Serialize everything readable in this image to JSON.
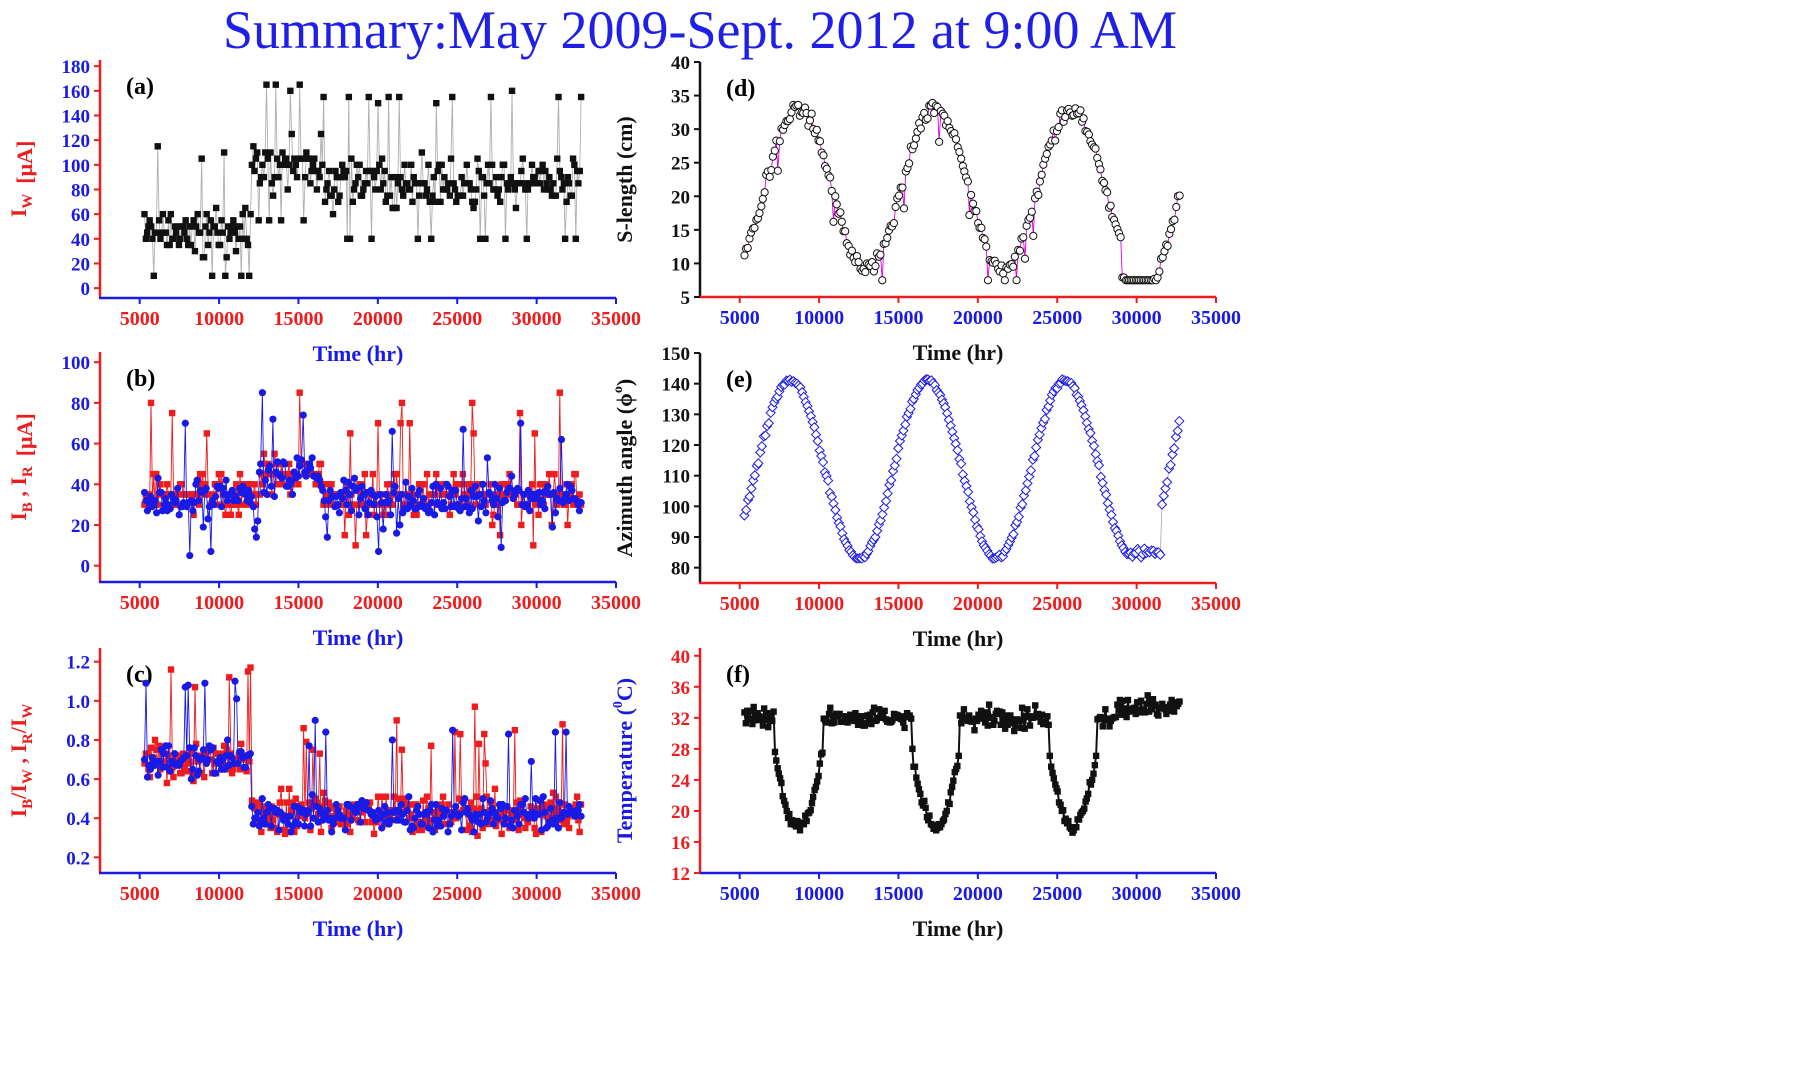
{
  "title": "Summary:May 2009-Sept. 2012 at 9:00 AM",
  "colors": {
    "title": "#1f1fe6",
    "red": "#ee1c1c",
    "blue": "#1a1ae6",
    "magenta": "#e000e0",
    "gray_line": "#b0b0b0",
    "black": "#111111"
  },
  "chart_data": [
    {
      "id": "a",
      "panel_label": "(a)",
      "type": "line",
      "xlabel": "Time (hr)",
      "ylabel_main": "I",
      "ylabel_sub": "W",
      "ylabel_unit": "[μA]",
      "xlim": [
        2500,
        35000
      ],
      "ylim": [
        -8,
        185
      ],
      "xticks": [
        5000,
        10000,
        15000,
        20000,
        25000,
        30000,
        35000
      ],
      "yticks": [
        0,
        20,
        40,
        60,
        80,
        100,
        120,
        140,
        160,
        180
      ],
      "x_tick_color": "red",
      "y_tick_color": "blue",
      "xlabel_color": "blue",
      "ylabel_color": "red",
      "bottom_axis_color": "blue",
      "left_axis_color": "red",
      "series": [
        {
          "marker": "square",
          "color": "black",
          "line": "gray_line",
          "x_range": [
            5300,
            32800
          ],
          "count": 330,
          "gen": "iw"
        }
      ]
    },
    {
      "id": "b",
      "panel_label": "(b)",
      "type": "line",
      "xlabel": "Time (hr)",
      "ylabel_main": "I",
      "ylabel_sub": "B",
      "ylabel_mid": " , I",
      "ylabel_sub2": "R",
      "ylabel_unit": "[μA]",
      "xlim": [
        2500,
        35000
      ],
      "ylim": [
        -8,
        105
      ],
      "xticks": [
        5000,
        10000,
        15000,
        20000,
        25000,
        30000,
        35000
      ],
      "yticks": [
        0,
        20,
        40,
        60,
        80,
        100
      ],
      "x_tick_color": "red",
      "y_tick_color": "blue",
      "xlabel_color": "blue",
      "ylabel_color": "red",
      "bottom_axis_color": "blue",
      "left_axis_color": "red",
      "series": [
        {
          "marker": "square",
          "color": "red",
          "line": "red",
          "x_range": [
            5300,
            32800
          ],
          "count": 330,
          "gen": "ir"
        },
        {
          "marker": "circle",
          "color": "blue",
          "line": "blue",
          "x_range": [
            5300,
            32800
          ],
          "count": 290,
          "gen": "ib"
        }
      ]
    },
    {
      "id": "c",
      "panel_label": "(c)",
      "type": "line",
      "xlabel": "Time (hr)",
      "ylabel_main": "I",
      "ylabel_sub": "B",
      "ylabel_mid": "/I",
      "ylabel_sub2": "W",
      "ylabel_mid2": " , I",
      "ylabel_sub3": "R",
      "ylabel_mid3": "/I",
      "ylabel_sub4": "W",
      "xlim": [
        2500,
        35000
      ],
      "ylim": [
        0.12,
        1.27
      ],
      "xticks": [
        5000,
        10000,
        15000,
        20000,
        25000,
        30000,
        35000
      ],
      "yticks": [
        0.2,
        0.4,
        0.6,
        0.8,
        1.0,
        1.2
      ],
      "ytick_decimals": 1,
      "x_tick_color": "red",
      "y_tick_color": "blue",
      "xlabel_color": "blue",
      "ylabel_color": "red",
      "bottom_axis_color": "blue",
      "left_axis_color": "red",
      "series": [
        {
          "marker": "square",
          "color": "red",
          "line": "red",
          "x_range": [
            5300,
            32800
          ],
          "count": 330,
          "gen": "rr"
        },
        {
          "marker": "circle",
          "color": "blue",
          "line": "blue",
          "x_range": [
            5300,
            32800
          ],
          "count": 290,
          "gen": "rb"
        }
      ]
    },
    {
      "id": "d",
      "panel_label": "(d)",
      "type": "line",
      "xlabel": "Time (hr)",
      "ylabel": "S-length (cm)",
      "xlim": [
        2500,
        35000
      ],
      "ylim": [
        5,
        40
      ],
      "xticks": [
        5000,
        10000,
        15000,
        20000,
        25000,
        30000,
        35000
      ],
      "yticks": [
        5,
        10,
        15,
        20,
        25,
        30,
        35,
        40
      ],
      "x_tick_color": "blue",
      "y_tick_color": "black",
      "xlabel_color": "black",
      "ylabel_color": "black",
      "bottom_axis_color": "red",
      "left_axis_color": "black",
      "series": [
        {
          "marker": "open-circle",
          "color": "black",
          "line": "magenta",
          "x_range": [
            5300,
            32700
          ],
          "count": 260,
          "gen": "slen"
        }
      ]
    },
    {
      "id": "e",
      "panel_label": "(e)",
      "type": "line",
      "xlabel": "Time (hr)",
      "ylabel": "Azimuth angle (ϕ",
      "ylabel_sup": "o",
      "ylabel_end": ")",
      "xlim": [
        2500,
        35000
      ],
      "ylim": [
        75,
        150
      ],
      "xticks": [
        5000,
        10000,
        15000,
        20000,
        25000,
        30000,
        35000
      ],
      "yticks": [
        80,
        90,
        100,
        110,
        120,
        130,
        140,
        150
      ],
      "x_tick_color": "red",
      "y_tick_color": "black",
      "xlabel_color": "black",
      "ylabel_color": "black",
      "bottom_axis_color": "red",
      "left_axis_color": "black",
      "series": [
        {
          "marker": "open-diamond",
          "color": "blue",
          "line": "gray_line",
          "x_range": [
            5300,
            32700
          ],
          "count": 250,
          "gen": "azim"
        }
      ]
    },
    {
      "id": "f",
      "panel_label": "(f)",
      "type": "line",
      "xlabel": "Time (hr)",
      "ylabel": "Temperature (",
      "ylabel_sup": "0",
      "ylabel_end": "C)",
      "xlim": [
        2500,
        35000
      ],
      "ylim": [
        12,
        41
      ],
      "xticks": [
        5000,
        10000,
        15000,
        20000,
        25000,
        30000,
        35000
      ],
      "yticks": [
        12,
        16,
        20,
        24,
        28,
        32,
        36,
        40
      ],
      "x_tick_color": "blue",
      "y_tick_color": "red",
      "xlabel_color": "black",
      "ylabel_color": "blue",
      "bottom_axis_color": "blue",
      "left_axis_color": "red",
      "series": [
        {
          "marker": "square",
          "color": "black",
          "line": "black",
          "x_range": [
            5300,
            32700
          ],
          "count": 330,
          "gen": "temp"
        }
      ]
    }
  ]
}
